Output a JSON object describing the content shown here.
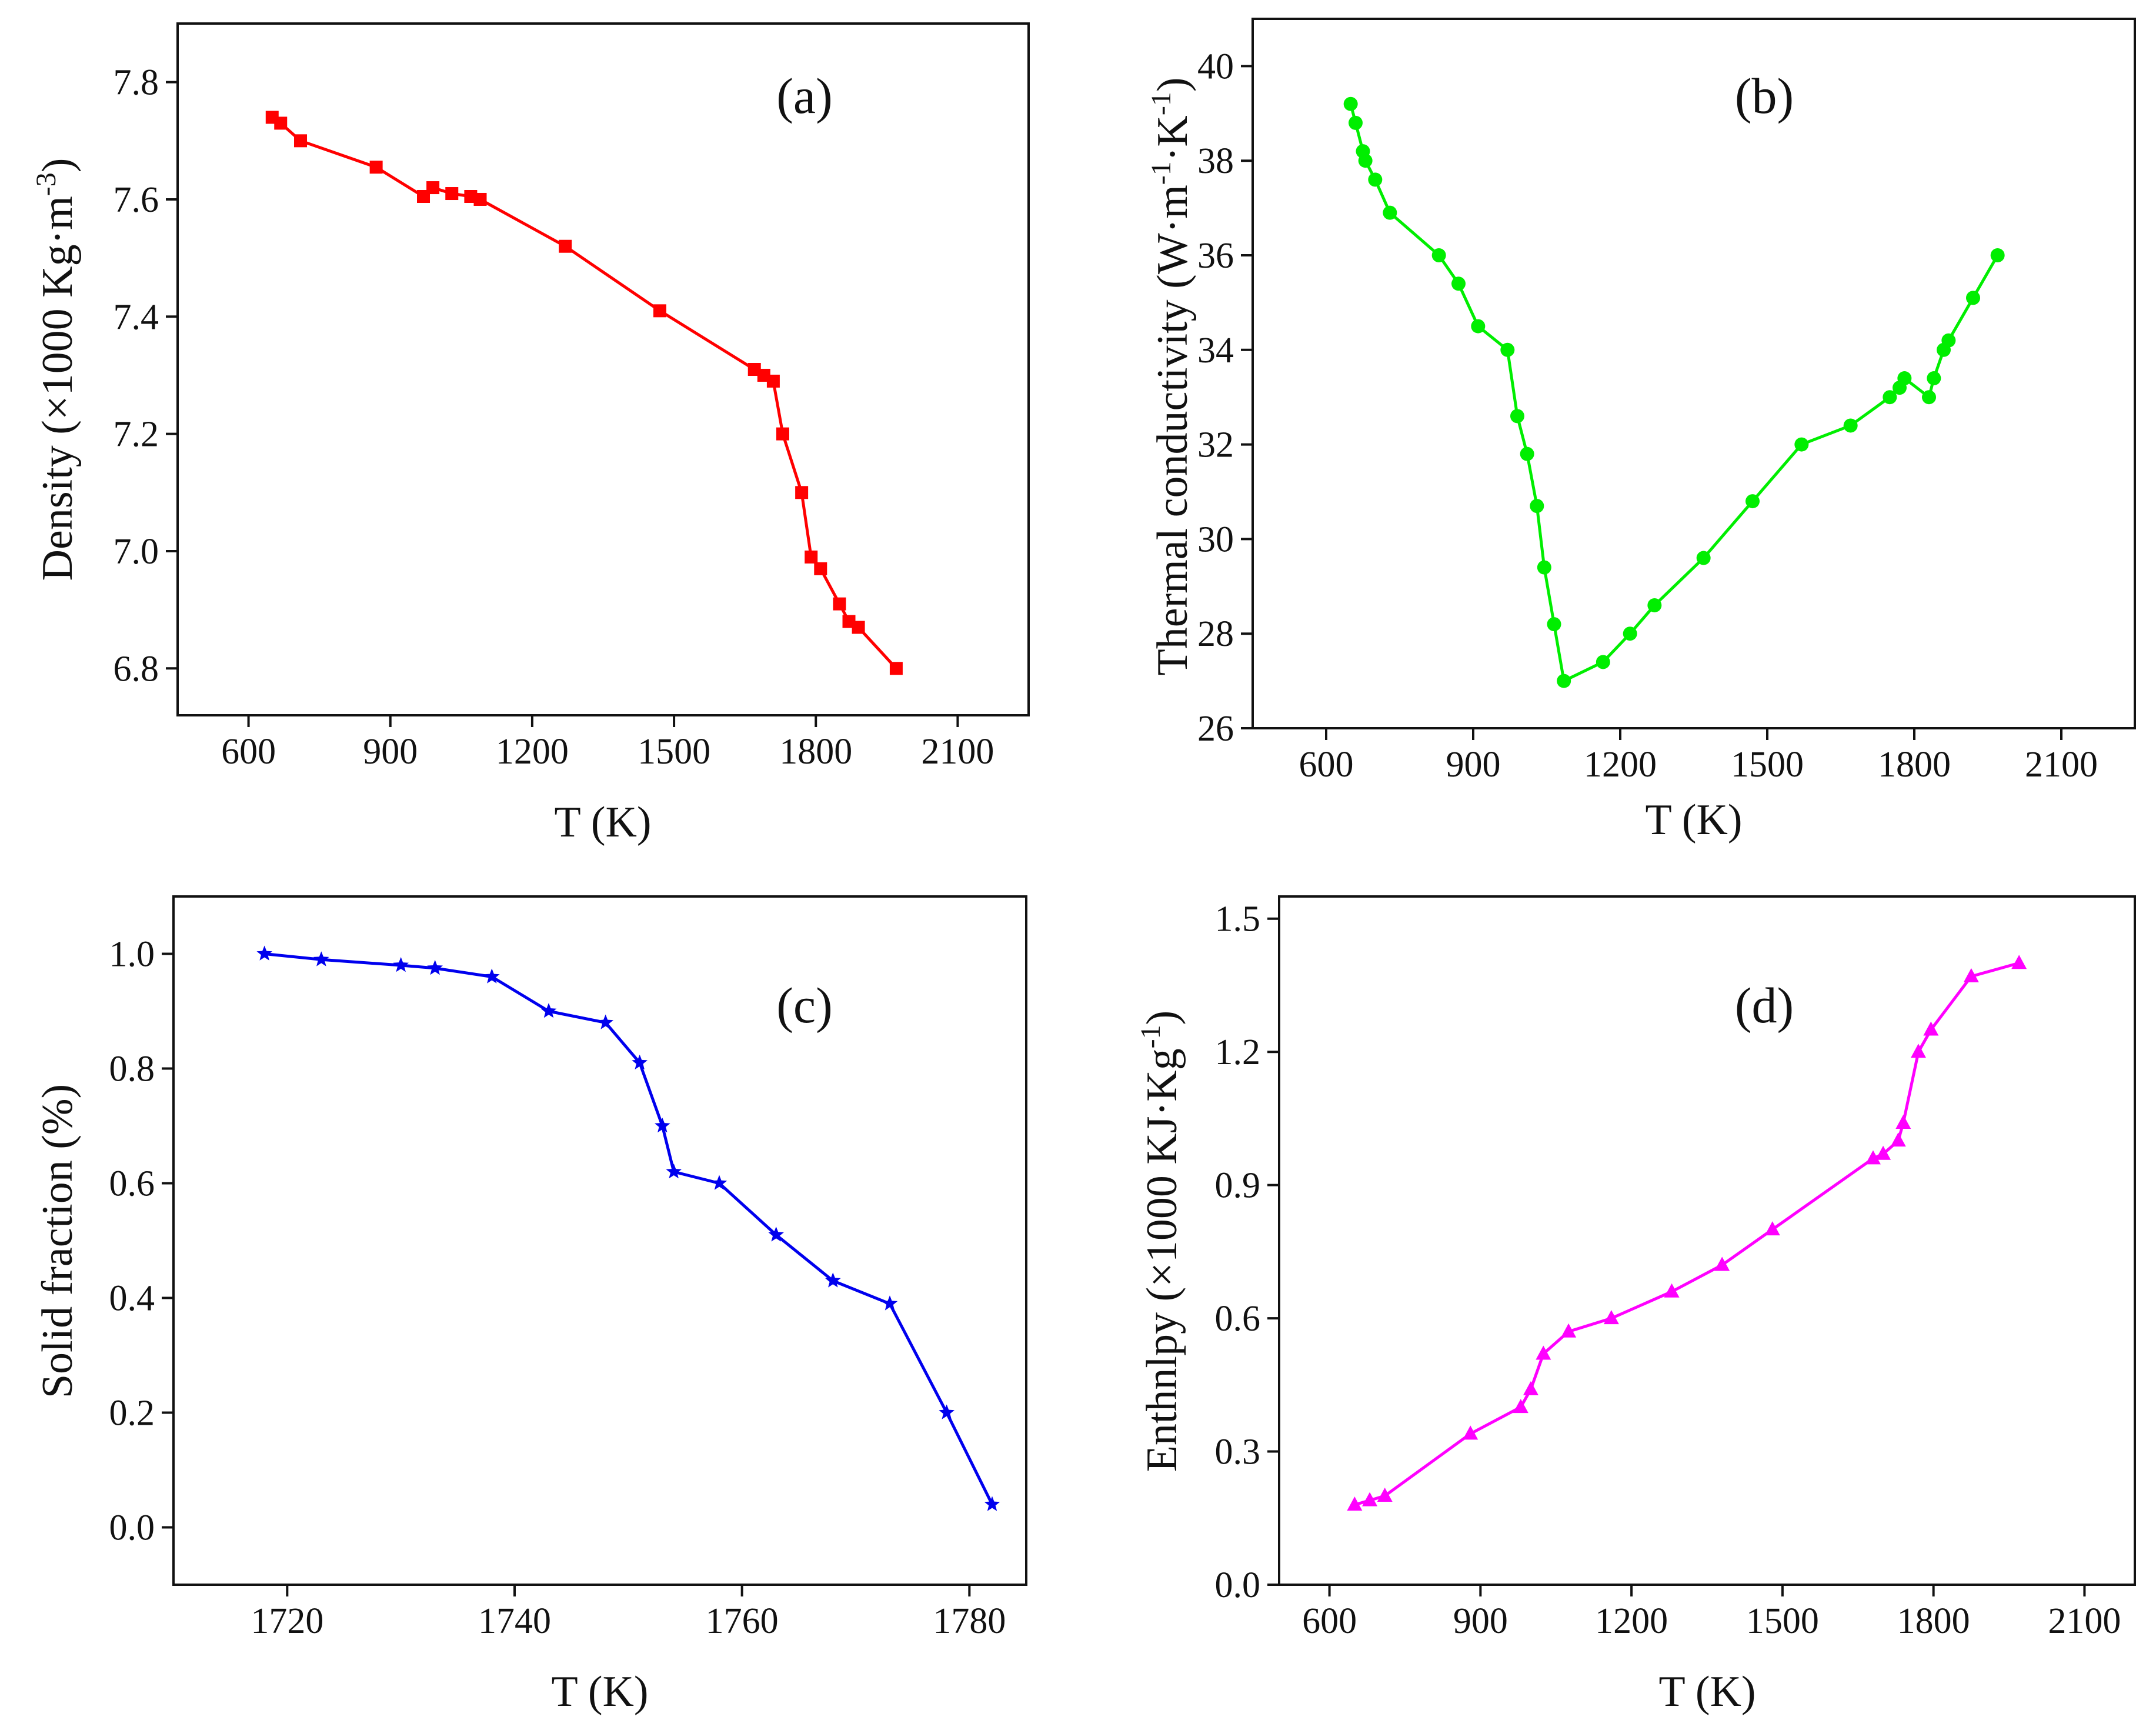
{
  "figure": {
    "colors": {
      "axis": "#111111",
      "background": "#ffffff"
    }
  },
  "chart_data": [
    {
      "panel": "a",
      "panel_label": "(a)",
      "type": "line",
      "marker": "square",
      "color": "#ff0000",
      "xlabel": "T (K)",
      "ylabel_prefix": "Density (×1000 Kg·m",
      "ylabel_sup": "-3",
      "ylabel_suffix": ")",
      "xlim": [
        450,
        2250
      ],
      "ylim": [
        6.72,
        7.9
      ],
      "xticks": [
        600,
        900,
        1200,
        1500,
        1800,
        2100
      ],
      "xtick_labels": [
        "600",
        "900",
        "1200",
        "1500",
        "1800",
        "2100"
      ],
      "yticks": [
        6.8,
        7.0,
        7.2,
        7.4,
        7.6,
        7.8
      ],
      "ytick_labels": [
        "6.8",
        "7.0",
        "7.2",
        "7.4",
        "7.6",
        "7.8"
      ],
      "x": [
        650,
        668,
        710,
        870,
        970,
        990,
        1030,
        1070,
        1090,
        1270,
        1470,
        1670,
        1690,
        1710,
        1730,
        1770,
        1790,
        1810,
        1850,
        1870,
        1890,
        1970
      ],
      "y": [
        7.74,
        7.73,
        7.7,
        7.655,
        7.605,
        7.62,
        7.61,
        7.605,
        7.6,
        7.52,
        7.41,
        7.31,
        7.3,
        7.29,
        7.2,
        7.1,
        6.99,
        6.97,
        6.91,
        6.88,
        6.87,
        6.8
      ]
    },
    {
      "panel": "b",
      "panel_label": "(b)",
      "type": "line",
      "marker": "circle",
      "color": "#00ee00",
      "xlabel": "T (K)",
      "ylabel_prefix": "Thermal conductivity (W·m",
      "ylabel_sup": "-1",
      "ylabel_mid": "·K",
      "ylabel_sup2": "-1",
      "ylabel_suffix": ")",
      "xlim": [
        450,
        2250
      ],
      "ylim": [
        26,
        41
      ],
      "xticks": [
        600,
        900,
        1200,
        1500,
        1800,
        2100
      ],
      "xtick_labels": [
        "600",
        "900",
        "1200",
        "1500",
        "1800",
        "2100"
      ],
      "yticks": [
        26,
        28,
        30,
        32,
        34,
        36,
        38,
        40
      ],
      "ytick_labels": [
        "26",
        "28",
        "30",
        "32",
        "34",
        "36",
        "38",
        "40"
      ],
      "x": [
        650,
        660,
        675,
        680,
        700,
        730,
        830,
        870,
        910,
        970,
        990,
        1010,
        1030,
        1045,
        1065,
        1085,
        1165,
        1220,
        1270,
        1370,
        1470,
        1570,
        1670,
        1750,
        1770,
        1780,
        1830,
        1840,
        1860,
        1870,
        1920,
        1970
      ],
      "y": [
        39.2,
        38.8,
        38.2,
        38.0,
        37.6,
        36.9,
        36.0,
        35.4,
        34.5,
        34.0,
        32.6,
        31.8,
        30.7,
        29.4,
        28.2,
        27.0,
        27.4,
        28.0,
        28.6,
        29.6,
        30.8,
        32.0,
        32.4,
        33.0,
        33.2,
        33.4,
        33.0,
        33.4,
        34.0,
        34.2,
        35.1,
        36.0
      ]
    },
    {
      "panel": "c",
      "panel_label": "(c)",
      "type": "line",
      "marker": "star",
      "color": "#0000ee",
      "xlabel": "T (K)",
      "ylabel": "Solid fraction (%)",
      "xlim": [
        1710,
        1785
      ],
      "ylim": [
        -0.1,
        1.1
      ],
      "xticks": [
        1720,
        1740,
        1760,
        1780
      ],
      "xtick_labels": [
        "1720",
        "1740",
        "1760",
        "1780"
      ],
      "yticks": [
        0.0,
        0.2,
        0.4,
        0.6,
        0.8,
        1.0
      ],
      "ytick_labels": [
        "0.0",
        "0.2",
        "0.4",
        "0.6",
        "0.8",
        "1.0"
      ],
      "x": [
        1718,
        1723,
        1730,
        1733,
        1738,
        1743,
        1748,
        1751,
        1753,
        1754,
        1758,
        1763,
        1768,
        1773,
        1778,
        1782
      ],
      "y": [
        1.0,
        0.99,
        0.98,
        0.975,
        0.96,
        0.9,
        0.88,
        0.81,
        0.7,
        0.62,
        0.6,
        0.51,
        0.43,
        0.39,
        0.2,
        0.04
      ]
    },
    {
      "panel": "d",
      "panel_label": "(d)",
      "type": "line",
      "marker": "triangle",
      "color": "#ff00ff",
      "xlabel": "T (K)",
      "ylabel_prefix": "Enthnlpy (×1000 KJ·Kg",
      "ylabel_sup": "-1",
      "ylabel_suffix": ")",
      "xlim": [
        500,
        2200
      ],
      "ylim": [
        0.0,
        1.55
      ],
      "xticks": [
        600,
        900,
        1200,
        1500,
        1800,
        2100
      ],
      "xtick_labels": [
        "600",
        "900",
        "1200",
        "1500",
        "1800",
        "2100"
      ],
      "yticks": [
        0.0,
        0.3,
        0.6,
        0.9,
        1.2,
        1.5
      ],
      "ytick_labels": [
        "0.0",
        "0.3",
        "0.6",
        "0.9",
        "1.2",
        "1.5"
      ],
      "x": [
        650,
        680,
        710,
        880,
        980,
        1000,
        1025,
        1075,
        1160,
        1280,
        1380,
        1480,
        1680,
        1700,
        1730,
        1740,
        1770,
        1795,
        1875,
        1970
      ],
      "y": [
        0.18,
        0.19,
        0.2,
        0.34,
        0.4,
        0.44,
        0.52,
        0.57,
        0.6,
        0.66,
        0.72,
        0.8,
        0.96,
        0.97,
        1.0,
        1.04,
        1.2,
        1.25,
        1.37,
        1.4
      ]
    }
  ]
}
